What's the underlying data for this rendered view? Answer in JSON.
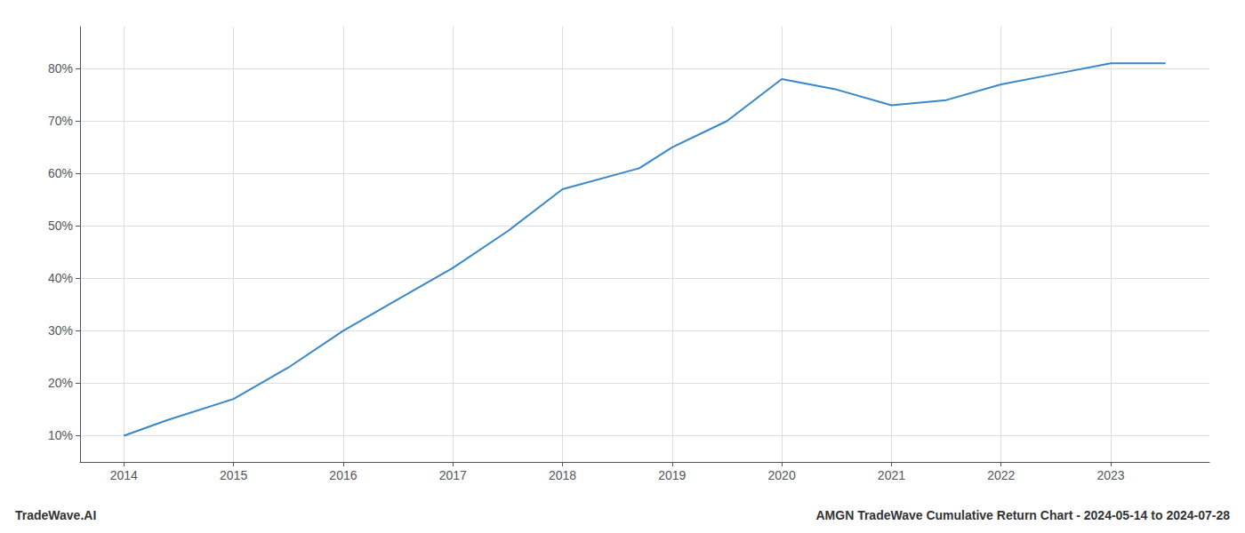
{
  "chart_data": {
    "type": "line",
    "title": "AMGN TradeWave Cumulative Return Chart - 2024-05-14 to 2024-07-28",
    "annotations": [
      "TradeWave.AI"
    ],
    "x": [
      2014,
      2014.4,
      2015,
      2015.5,
      2016,
      2016.5,
      2017,
      2017.5,
      2018,
      2018.7,
      2019,
      2019.5,
      2020,
      2020.5,
      2021,
      2021.5,
      2022,
      2022.5,
      2023,
      2023.5
    ],
    "values": [
      10,
      13,
      17,
      23,
      30,
      36,
      42,
      49,
      57,
      61,
      65,
      70,
      78,
      76,
      73,
      74,
      77,
      79,
      81,
      81
    ],
    "color": "#3a87c8",
    "xlim": [
      2013.6,
      2023.9
    ],
    "xticks": [
      2014,
      2015,
      2016,
      2017,
      2018,
      2019,
      2020,
      2021,
      2022,
      2023
    ],
    "ylim": [
      5,
      88
    ],
    "yticks": [
      {
        "value": 10,
        "label": "10%"
      },
      {
        "value": 20,
        "label": "20%"
      },
      {
        "value": 30,
        "label": "30%"
      },
      {
        "value": 40,
        "label": "40%"
      },
      {
        "value": 50,
        "label": "50%"
      },
      {
        "value": 60,
        "label": "60%"
      },
      {
        "value": 70,
        "label": "70%"
      },
      {
        "value": 80,
        "label": "80%"
      }
    ],
    "grid": true
  }
}
